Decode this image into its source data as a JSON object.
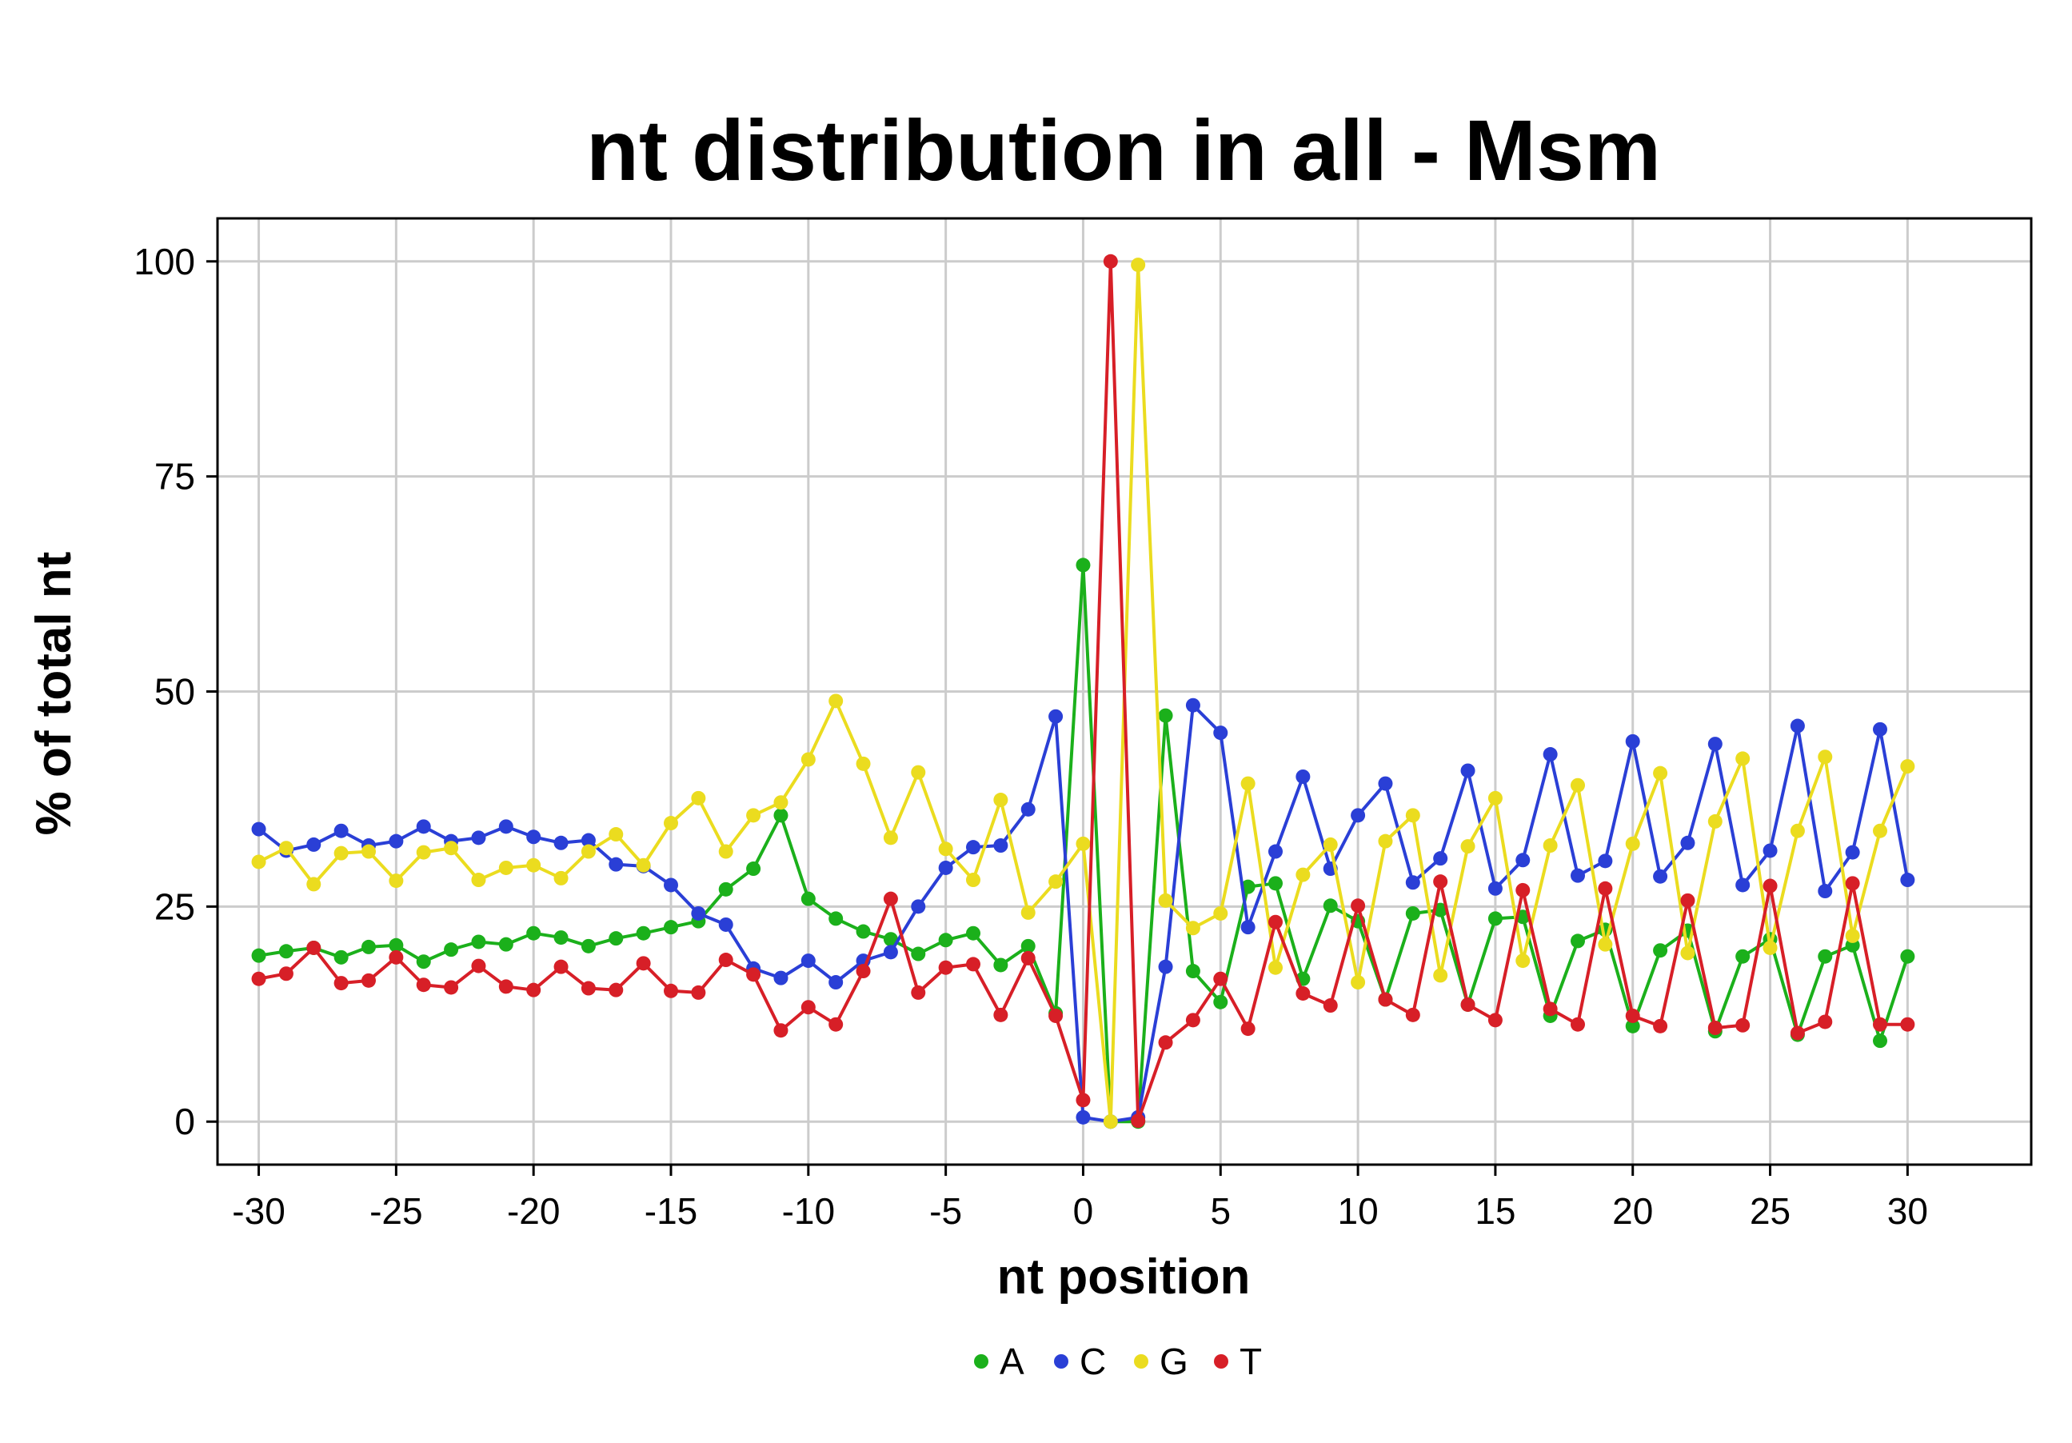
{
  "chart_data": {
    "type": "line",
    "title": "nt distribution in all - Msm",
    "xlabel": "nt position",
    "ylabel": "% of total nt",
    "xlim": [
      -31.5,
      34.5
    ],
    "ylim": [
      -5,
      105
    ],
    "xticks": [
      -30,
      -25,
      -20,
      -15,
      -10,
      -5,
      0,
      5,
      10,
      15,
      20,
      25,
      30
    ],
    "yticks": [
      0,
      25,
      50,
      75,
      100
    ],
    "grid": true,
    "legend_position": "bottom",
    "x": [
      -30,
      -29,
      -28,
      -27,
      -26,
      -25,
      -24,
      -23,
      -22,
      -21,
      -20,
      -19,
      -18,
      -17,
      -16,
      -15,
      -14,
      -13,
      -12,
      -11,
      -10,
      -9,
      -8,
      -7,
      -6,
      -5,
      -4,
      -3,
      -2,
      -1,
      0,
      1,
      2,
      3,
      4,
      5,
      6,
      7,
      8,
      9,
      10,
      11,
      12,
      13,
      14,
      15,
      16,
      17,
      18,
      19,
      20,
      21,
      22,
      23,
      24,
      25,
      26,
      27,
      28,
      29,
      30
    ],
    "series": [
      {
        "name": "A",
        "color": "#1bb01b",
        "values": [
          19.3,
          19.8,
          20.2,
          19.1,
          20.3,
          20.5,
          18.6,
          20.0,
          20.9,
          20.6,
          21.9,
          21.4,
          20.4,
          21.3,
          21.9,
          22.6,
          23.3,
          27.0,
          29.4,
          35.6,
          25.9,
          23.6,
          22.1,
          21.2,
          19.5,
          21.1,
          21.9,
          18.2,
          20.4,
          12.6,
          64.7,
          0.0,
          0.0,
          47.2,
          17.5,
          13.9,
          27.3,
          27.7,
          16.6,
          25.1,
          23.3,
          14.2,
          24.2,
          24.6,
          13.6,
          23.6,
          23.8,
          12.3,
          21.0,
          22.3,
          11.1,
          19.9,
          22.2,
          10.5,
          19.2,
          21.2,
          10.1,
          19.2,
          20.5,
          9.4,
          19.2
        ]
      },
      {
        "name": "C",
        "color": "#2a3fd6",
        "values": [
          34.0,
          31.5,
          32.2,
          33.8,
          32.1,
          32.6,
          34.3,
          32.6,
          33.0,
          34.3,
          33.1,
          32.4,
          32.7,
          29.9,
          29.7,
          27.5,
          24.2,
          22.9,
          17.8,
          16.7,
          18.7,
          16.2,
          18.7,
          19.7,
          25.0,
          29.5,
          31.9,
          32.1,
          36.3,
          47.1,
          0.5,
          0.0,
          0.5,
          18.0,
          48.4,
          45.2,
          22.6,
          31.4,
          40.1,
          29.4,
          35.6,
          39.3,
          27.8,
          30.6,
          40.8,
          27.1,
          30.4,
          42.7,
          28.6,
          30.3,
          44.2,
          28.5,
          32.4,
          43.9,
          27.5,
          31.5,
          46.0,
          26.8,
          31.3,
          45.6,
          28.1
        ]
      },
      {
        "name": "G",
        "color": "#ebdc1f",
        "values": [
          30.2,
          31.8,
          27.6,
          31.2,
          31.4,
          28.0,
          31.3,
          31.8,
          28.1,
          29.5,
          29.8,
          28.3,
          31.4,
          33.4,
          29.8,
          34.7,
          37.6,
          31.4,
          35.6,
          37.1,
          42.1,
          48.9,
          41.6,
          33.0,
          40.6,
          31.7,
          28.1,
          37.4,
          24.3,
          27.9,
          32.3,
          0.0,
          99.6,
          25.7,
          22.5,
          24.2,
          39.3,
          17.9,
          28.7,
          32.2,
          16.2,
          32.6,
          35.6,
          17.0,
          32.0,
          37.6,
          18.7,
          32.1,
          39.1,
          20.6,
          32.3,
          40.5,
          19.6,
          34.9,
          42.2,
          20.2,
          33.8,
          42.4,
          21.6,
          33.8,
          41.3
        ]
      },
      {
        "name": "T",
        "color": "#d71f27",
        "values": [
          16.6,
          17.2,
          20.2,
          16.1,
          16.4,
          19.1,
          15.9,
          15.6,
          18.1,
          15.7,
          15.3,
          18.0,
          15.5,
          15.3,
          18.4,
          15.2,
          15.0,
          18.8,
          17.1,
          10.6,
          13.3,
          11.3,
          17.5,
          25.9,
          15.0,
          17.9,
          18.3,
          12.4,
          19.0,
          12.3,
          2.5,
          100.0,
          0.1,
          9.2,
          11.8,
          16.6,
          10.8,
          23.2,
          14.9,
          13.5,
          25.1,
          14.2,
          12.4,
          27.9,
          13.6,
          11.8,
          26.9,
          13.1,
          11.3,
          27.1,
          12.3,
          11.1,
          25.7,
          10.9,
          11.2,
          27.4,
          10.3,
          11.6,
          27.7,
          11.3,
          11.3
        ]
      }
    ]
  }
}
